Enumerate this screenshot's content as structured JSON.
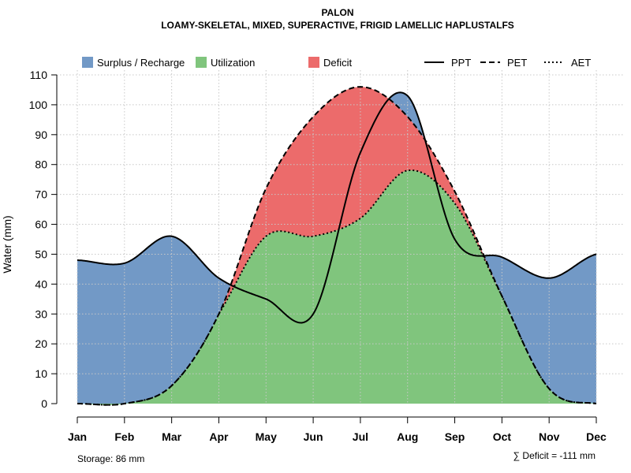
{
  "chart_data": {
    "type": "area",
    "title": "PALON",
    "subtitle": "LOAMY-SKELETAL, MIXED, SUPERACTIVE, FRIGID LAMELLIC HAPLUSTALFS",
    "ylabel": "Water (mm)",
    "xlabel": "",
    "ylim": [
      0,
      110
    ],
    "yticks": [
      "0",
      "10",
      "20",
      "30",
      "40",
      "50",
      "60",
      "70",
      "80",
      "90",
      "100",
      "110"
    ],
    "categories": [
      "Jan",
      "Feb",
      "Mar",
      "Apr",
      "May",
      "Jun",
      "Jul",
      "Aug",
      "Sep",
      "Oct",
      "Nov",
      "Dec"
    ],
    "grid": true,
    "legend_position": "top",
    "legend": {
      "fills": [
        {
          "key": "surplus",
          "label": "Surplus / Recharge",
          "color": "#7299c6"
        },
        {
          "key": "utilization",
          "label": "Utilization",
          "color": "#80c57d"
        },
        {
          "key": "deficit",
          "label": "Deficit",
          "color": "#ec6b6b"
        }
      ],
      "lines": [
        {
          "key": "PPT",
          "label": "PPT",
          "dash": "solid"
        },
        {
          "key": "PET",
          "label": "PET",
          "dash": "dashed"
        },
        {
          "key": "AET",
          "label": "AET",
          "dash": "dotted"
        }
      ]
    },
    "series": [
      {
        "name": "PPT",
        "values": [
          48,
          47,
          56,
          42,
          35,
          30,
          84,
          103,
          55,
          49,
          42,
          50
        ]
      },
      {
        "name": "PET",
        "values": [
          0,
          0,
          6,
          30,
          72,
          96,
          106,
          96,
          71,
          36,
          5,
          0
        ]
      },
      {
        "name": "AET",
        "values": [
          0,
          0,
          6,
          30,
          56,
          56,
          62,
          78,
          67,
          36,
          5,
          0
        ]
      }
    ],
    "annotations": {
      "storage": "Storage: 86 mm",
      "deficit_total": "∑ Deficit = -111 mm"
    }
  }
}
